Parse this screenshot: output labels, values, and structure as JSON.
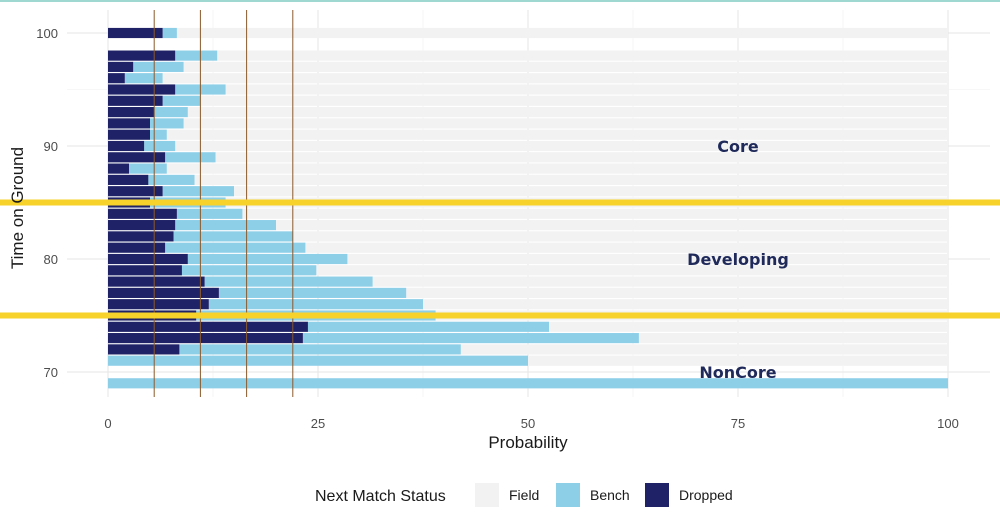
{
  "chart_data": {
    "type": "bar",
    "orientation": "horizontal",
    "stacked": true,
    "xlabel": "Probability",
    "ylabel": "Time on Ground",
    "xlim": [
      0,
      100
    ],
    "ylim": [
      68.6,
      100.7
    ],
    "x_ticks": [
      0,
      25,
      50,
      75,
      100
    ],
    "y_ticks": [
      70,
      80,
      90,
      100
    ],
    "grid": true,
    "legend": {
      "title": "Next Match Status",
      "position": "bottom",
      "entries": [
        {
          "name": "Field",
          "color": "#f2f2f2"
        },
        {
          "name": "Bench",
          "color": "#8ecfe8"
        },
        {
          "name": "Dropped",
          "color": "#1f2266"
        }
      ]
    },
    "colors": {
      "field": "#f2f2f2",
      "bench": "#8ecfe8",
      "dropped": "#1f2266",
      "threshold": "#f6d22a",
      "vline": "#8b5a2b"
    },
    "thresholds_y": [
      85,
      75
    ],
    "vertical_reference_lines_x": [
      5.5,
      11,
      16.5,
      22
    ],
    "zone_labels": [
      {
        "label": "Core",
        "x": 75,
        "y": 90
      },
      {
        "label": "Developing",
        "x": 75,
        "y": 80
      },
      {
        "label": "NonCore",
        "x": 75,
        "y": 70
      }
    ],
    "series": [
      {
        "name": "Dropped",
        "points": [
          [
            100,
            6.5
          ],
          [
            98,
            8
          ],
          [
            97,
            3
          ],
          [
            96,
            2
          ],
          [
            95,
            8
          ],
          [
            94,
            6.5
          ],
          [
            93,
            5.5
          ],
          [
            92,
            5
          ],
          [
            91,
            5
          ],
          [
            90,
            4.3
          ],
          [
            89,
            6.8
          ],
          [
            88,
            2.5
          ],
          [
            87,
            4.8
          ],
          [
            86,
            6.5
          ],
          [
            85,
            5
          ],
          [
            84,
            8.2
          ],
          [
            83,
            8
          ],
          [
            82,
            7.8
          ],
          [
            81,
            6.8
          ],
          [
            80,
            9.5
          ],
          [
            79,
            8.8
          ],
          [
            78,
            11.5
          ],
          [
            77,
            13.2
          ],
          [
            76,
            12
          ],
          [
            75,
            10.5
          ],
          [
            74,
            23.8
          ],
          [
            73,
            23.2
          ],
          [
            72,
            8.5
          ],
          [
            71,
            0
          ],
          [
            69,
            0
          ]
        ]
      },
      {
        "name": "Bench",
        "points": [
          [
            100,
            1.7
          ],
          [
            98,
            5
          ],
          [
            97,
            6
          ],
          [
            96,
            4.5
          ],
          [
            95,
            6
          ],
          [
            94,
            4.5
          ],
          [
            93,
            4
          ],
          [
            92,
            4
          ],
          [
            91,
            2
          ],
          [
            90,
            3.7
          ],
          [
            89,
            6
          ],
          [
            88,
            4.5
          ],
          [
            87,
            5.5
          ],
          [
            86,
            8.5
          ],
          [
            85,
            9
          ],
          [
            84,
            7.8
          ],
          [
            83,
            12
          ],
          [
            82,
            14.2
          ],
          [
            81,
            16.7
          ],
          [
            80,
            19
          ],
          [
            79,
            16
          ],
          [
            78,
            20
          ],
          [
            77,
            22.3
          ],
          [
            76,
            25.5
          ],
          [
            75,
            28.5
          ],
          [
            74,
            28.7
          ],
          [
            73,
            40
          ],
          [
            72,
            33.5
          ],
          [
            71,
            50
          ],
          [
            69,
            100
          ]
        ]
      }
    ]
  }
}
